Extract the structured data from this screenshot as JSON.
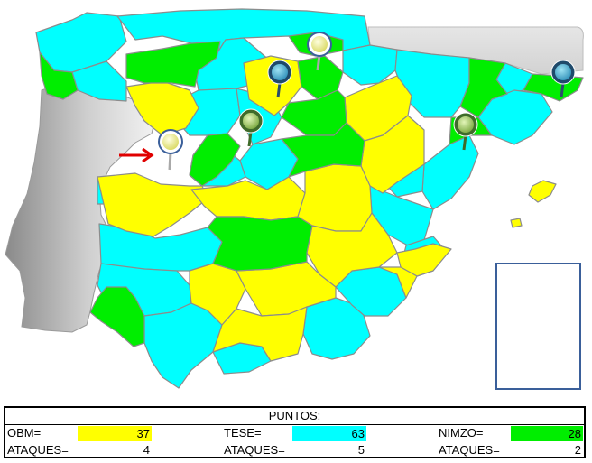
{
  "colors": {
    "obm": "#ffff00",
    "tese": "#00ffff",
    "nimzo": "#00ee00",
    "portugal": "#c8c8c8",
    "marker_yellow": "#f4f48a",
    "marker_blue": "#4fb8d8",
    "marker_green": "#9acd60",
    "arrow": "#e00000",
    "box_border": "#3a5f9a"
  },
  "map": {
    "markers": [
      {
        "name": "marker-yellow-orense",
        "color": "yellow"
      },
      {
        "name": "marker-yellow-bilbao",
        "color": "yellow"
      },
      {
        "name": "marker-blue-burgos",
        "color": "blue"
      },
      {
        "name": "marker-blue-girona",
        "color": "blue"
      },
      {
        "name": "marker-green-palencia",
        "color": "green"
      },
      {
        "name": "marker-green-lleida",
        "color": "green"
      }
    ],
    "arrow_icon": "red-arrow-icon",
    "empty_box": "canary-islands-box"
  },
  "scoreboard": {
    "title": "PUNTOS:",
    "teams": [
      {
        "label": "OBM=",
        "points": "37",
        "attacks_label": "ATAQUES=",
        "attacks": "4",
        "color": "#ffff00"
      },
      {
        "label": "TESE=",
        "points": "63",
        "attacks_label": "ATAQUES=",
        "attacks": "5",
        "color": "#00ffff"
      },
      {
        "label": "NIMZO=",
        "points": "28",
        "attacks_label": "ATAQUES=",
        "attacks": "2",
        "color": "#00ee00"
      }
    ]
  }
}
